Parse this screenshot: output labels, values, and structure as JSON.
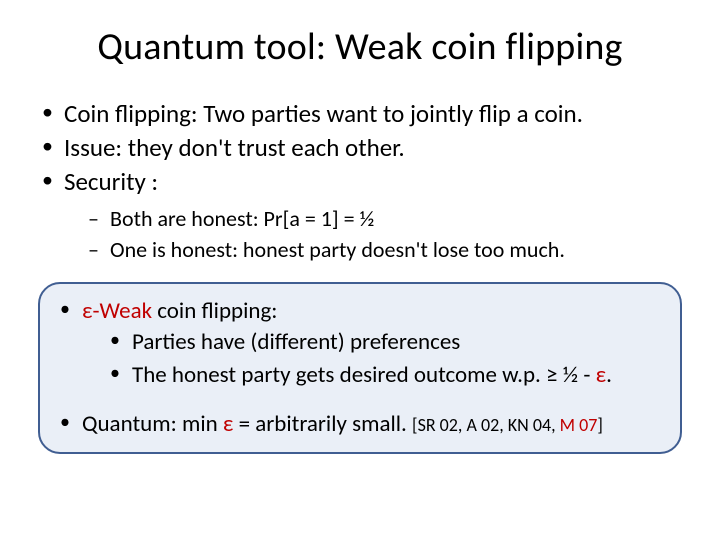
{
  "colors": {
    "background": "#ffffff",
    "text": "#000000",
    "box_border": "#405e92",
    "box_fill": "#eaeff7",
    "accent_red": "#c00000"
  },
  "typography": {
    "title_fontsize": 38,
    "body_fontsize": 25,
    "sub_fontsize": 22,
    "box_fontsize": 23,
    "ref_fontsize": 18,
    "font_family": "Calibri"
  },
  "title": "Quantum tool: Weak coin flipping",
  "bullets": {
    "b1": "Coin flipping: Two parties want to jointly flip a coin.",
    "b2": "Issue: they don't trust each other.",
    "b3": "Security :",
    "s1": "Both are honest: Pr[a = 1] = ½",
    "s2": "One is honest: honest party doesn't lose too much."
  },
  "box": {
    "weak_prefix": "ε-Weak",
    "weak_suffix": " coin flipping:",
    "p1": "Parties have (different) preferences",
    "p2_a": "The honest party gets desired outcome w.p. ≥ ½ - ",
    "p2_eps": "ε",
    "p2_dot": ".",
    "q_a": "Quantum: min ",
    "q_eps": "ε",
    "q_b": " = arbitrarily small. ",
    "refs_a": "[SR 02, A 02, KN 04, ",
    "refs_red": "M 07",
    "refs_b": "]"
  }
}
